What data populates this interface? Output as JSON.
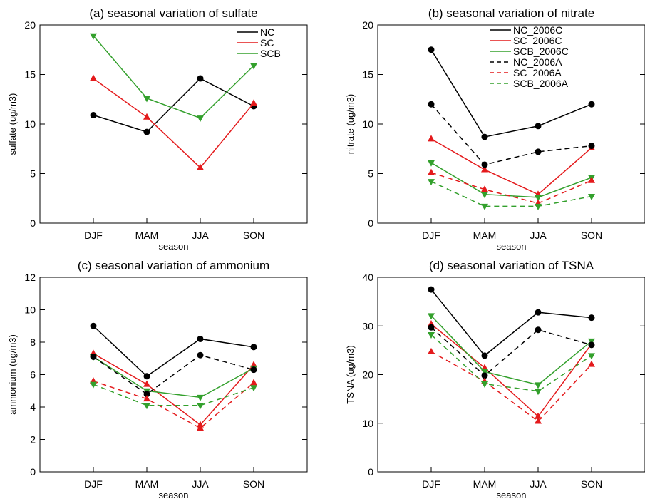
{
  "chart_data": [
    {
      "type": "line",
      "title": "(a) seasonal variation of sulfate",
      "xlabel": "season",
      "ylabel": "sulfate (ug/m3)",
      "categories": [
        "DJF",
        "MAM",
        "JJA",
        "SON"
      ],
      "ylim": [
        0,
        20
      ],
      "yticks": [
        0,
        5,
        10,
        15,
        20
      ],
      "legend_position": "top-right",
      "series": [
        {
          "name": "NC",
          "values": [
            10.9,
            9.2,
            14.6,
            11.8
          ],
          "color": "#000000",
          "dash": "solid",
          "marker": "circle"
        },
        {
          "name": "SC",
          "values": [
            14.6,
            10.7,
            5.6,
            12.1
          ],
          "color": "#e41a1c",
          "dash": "solid",
          "marker": "triangle-up"
        },
        {
          "name": "SCB",
          "values": [
            18.9,
            12.6,
            10.6,
            15.9
          ],
          "color": "#33a02c",
          "dash": "solid",
          "marker": "triangle-down"
        }
      ]
    },
    {
      "type": "line",
      "title": "(b) seasonal variation of nitrate",
      "xlabel": "season",
      "ylabel": "nitrate (ug/m3)",
      "categories": [
        "DJF",
        "MAM",
        "JJA",
        "SON"
      ],
      "ylim": [
        0,
        20
      ],
      "yticks": [
        0,
        5,
        10,
        15,
        20
      ],
      "legend_position": "top-right",
      "series": [
        {
          "name": "NC_2006C",
          "values": [
            17.5,
            8.7,
            9.8,
            12.0
          ],
          "color": "#000000",
          "dash": "solid",
          "marker": "circle"
        },
        {
          "name": "SC_2006C",
          "values": [
            8.5,
            5.4,
            2.9,
            7.6
          ],
          "color": "#e41a1c",
          "dash": "solid",
          "marker": "triangle-up"
        },
        {
          "name": "SCB_2006C",
          "values": [
            6.1,
            2.9,
            2.6,
            4.6
          ],
          "color": "#33a02c",
          "dash": "solid",
          "marker": "triangle-down"
        },
        {
          "name": "NC_2006A",
          "values": [
            12.0,
            5.9,
            7.2,
            7.8
          ],
          "color": "#000000",
          "dash": "dashed",
          "marker": "circle"
        },
        {
          "name": "SC_2006A",
          "values": [
            5.1,
            3.4,
            2.0,
            4.3
          ],
          "color": "#e41a1c",
          "dash": "dashed",
          "marker": "triangle-up"
        },
        {
          "name": "SCB_2006A",
          "values": [
            4.2,
            1.7,
            1.7,
            2.7
          ],
          "color": "#33a02c",
          "dash": "dashed",
          "marker": "triangle-down"
        }
      ]
    },
    {
      "type": "line",
      "title": "(c) seasonal variation of ammonium",
      "xlabel": "season",
      "ylabel": "ammonium (ug/m3)",
      "categories": [
        "DJF",
        "MAM",
        "JJA",
        "SON"
      ],
      "ylim": [
        0,
        12
      ],
      "yticks": [
        0,
        2,
        4,
        6,
        8,
        10,
        12
      ],
      "series": [
        {
          "name": "NC_2006C",
          "values": [
            9.0,
            5.9,
            8.2,
            7.7
          ],
          "color": "#000000",
          "dash": "solid",
          "marker": "circle"
        },
        {
          "name": "SC_2006C",
          "values": [
            7.3,
            5.4,
            2.9,
            6.6
          ],
          "color": "#e41a1c",
          "dash": "solid",
          "marker": "triangle-up"
        },
        {
          "name": "SCB_2006C",
          "values": [
            7.1,
            5.0,
            4.6,
            6.4
          ],
          "color": "#33a02c",
          "dash": "solid",
          "marker": "triangle-down"
        },
        {
          "name": "NC_2006A",
          "values": [
            7.1,
            4.8,
            7.2,
            6.3
          ],
          "color": "#000000",
          "dash": "dashed",
          "marker": "circle"
        },
        {
          "name": "SC_2006A",
          "values": [
            5.6,
            4.5,
            2.7,
            5.5
          ],
          "color": "#e41a1c",
          "dash": "dashed",
          "marker": "triangle-up"
        },
        {
          "name": "SCB_2006A",
          "values": [
            5.4,
            4.1,
            4.1,
            5.2
          ],
          "color": "#33a02c",
          "dash": "dashed",
          "marker": "triangle-down"
        }
      ]
    },
    {
      "type": "line",
      "title": "(d) seasonal variation of TSNA",
      "xlabel": "season",
      "ylabel": "TSNA (ug/m3)",
      "categories": [
        "DJF",
        "MAM",
        "JJA",
        "SON"
      ],
      "ylim": [
        0,
        40
      ],
      "yticks": [
        0,
        10,
        20,
        30,
        40
      ],
      "series": [
        {
          "name": "NC_2006C",
          "values": [
            37.5,
            23.9,
            32.8,
            31.7
          ],
          "color": "#000000",
          "dash": "solid",
          "marker": "circle"
        },
        {
          "name": "SC_2006C",
          "values": [
            30.4,
            21.4,
            11.4,
            26.3
          ],
          "color": "#e41a1c",
          "dash": "solid",
          "marker": "triangle-up"
        },
        {
          "name": "SCB_2006C",
          "values": [
            32.1,
            20.6,
            17.9,
            26.9
          ],
          "color": "#33a02c",
          "dash": "solid",
          "marker": "triangle-down"
        },
        {
          "name": "NC_2006A",
          "values": [
            29.7,
            19.8,
            29.2,
            26.1
          ],
          "color": "#000000",
          "dash": "dashed",
          "marker": "circle"
        },
        {
          "name": "SC_2006A",
          "values": [
            24.7,
            18.6,
            10.4,
            22.1
          ],
          "color": "#e41a1c",
          "dash": "dashed",
          "marker": "triangle-up"
        },
        {
          "name": "SCB_2006A",
          "values": [
            28.2,
            18.1,
            16.6,
            23.9
          ],
          "color": "#33a02c",
          "dash": "dashed",
          "marker": "triangle-down"
        }
      ]
    }
  ]
}
